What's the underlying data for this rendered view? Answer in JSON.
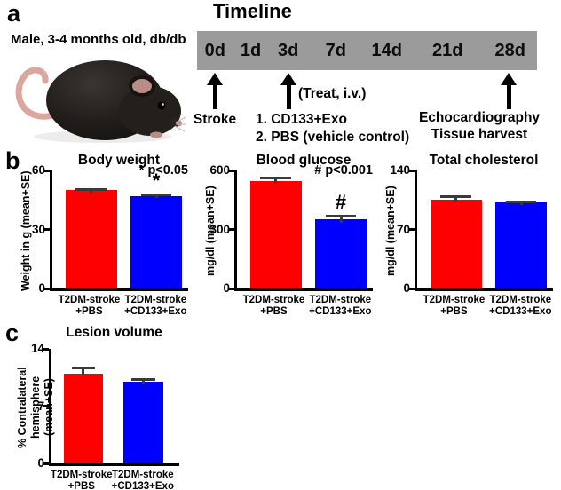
{
  "panels": {
    "a": "a",
    "b": "b",
    "c": "c"
  },
  "timeline": {
    "title": "Timeline",
    "subject": "Male, 3-4 months old, db/db",
    "bar_color": "#9b9b9b",
    "days": [
      "0d",
      "1d",
      "3d",
      "7d",
      "14d",
      "21d",
      "28d"
    ],
    "events": [
      {
        "label": "Stroke"
      },
      {
        "note": "(Treat, i.v.)",
        "items": [
          "1. CD133+Exo",
          "2. PBS (vehicle control)"
        ]
      },
      {
        "lines": [
          "Echocardiography",
          "Tissue harvest"
        ]
      }
    ]
  },
  "chart_data": [
    {
      "type": "bar",
      "title": "Body weight",
      "ylabel": "Weight in g (mean+SE)",
      "ylim": [
        0,
        60
      ],
      "yticks": [
        0,
        30,
        60
      ],
      "grid": false,
      "categories": [
        "T2DM-stroke\n+PBS",
        "T2DM-stroke\n+CD133+Exo"
      ],
      "values": [
        50,
        47
      ],
      "errors": [
        1,
        1.5
      ],
      "bar_colors": [
        "#ff0000",
        "#0000ff"
      ],
      "sig_note": "* p<0.05",
      "sig_markers": [
        "",
        "*"
      ]
    },
    {
      "type": "bar",
      "title": "Blood glucose",
      "ylabel": "mg/dl (mean+SE)",
      "ylim": [
        0,
        600
      ],
      "yticks": [
        0,
        300,
        600
      ],
      "grid": false,
      "categories": [
        "T2DM-stroke\n+PBS",
        "T2DM-stroke\n+CD133+Exo"
      ],
      "values": [
        545,
        350
      ],
      "errors": [
        25,
        30
      ],
      "bar_colors": [
        "#ff0000",
        "#0000ff"
      ],
      "sig_note": "# p<0.001",
      "sig_markers": [
        "",
        "#"
      ]
    },
    {
      "type": "bar",
      "title": "Total cholesterol",
      "ylabel": "mg/dl (mean+SE)",
      "ylim": [
        0,
        140
      ],
      "yticks": [
        0,
        70,
        140
      ],
      "grid": false,
      "categories": [
        "T2DM-stroke\n+PBS",
        "T2DM-stroke\n+CD133+Exo"
      ],
      "values": [
        105,
        102
      ],
      "errors": [
        6,
        2.5
      ],
      "bar_colors": [
        "#ff0000",
        "#0000ff"
      ]
    },
    {
      "type": "bar",
      "title": "Lesion volume",
      "ylabel": "% Contralateral hemisphere\n(mean+SE)",
      "ylim": [
        0,
        14
      ],
      "yticks": [
        0,
        7,
        14
      ],
      "grid": false,
      "categories": [
        "T2DM-stroke\n+PBS",
        "T2DM-stroke\n+CD133+Exo"
      ],
      "values": [
        11,
        10
      ],
      "errors": [
        0.9,
        0.5
      ],
      "bar_colors": [
        "#ff0000",
        "#0000ff"
      ]
    }
  ]
}
